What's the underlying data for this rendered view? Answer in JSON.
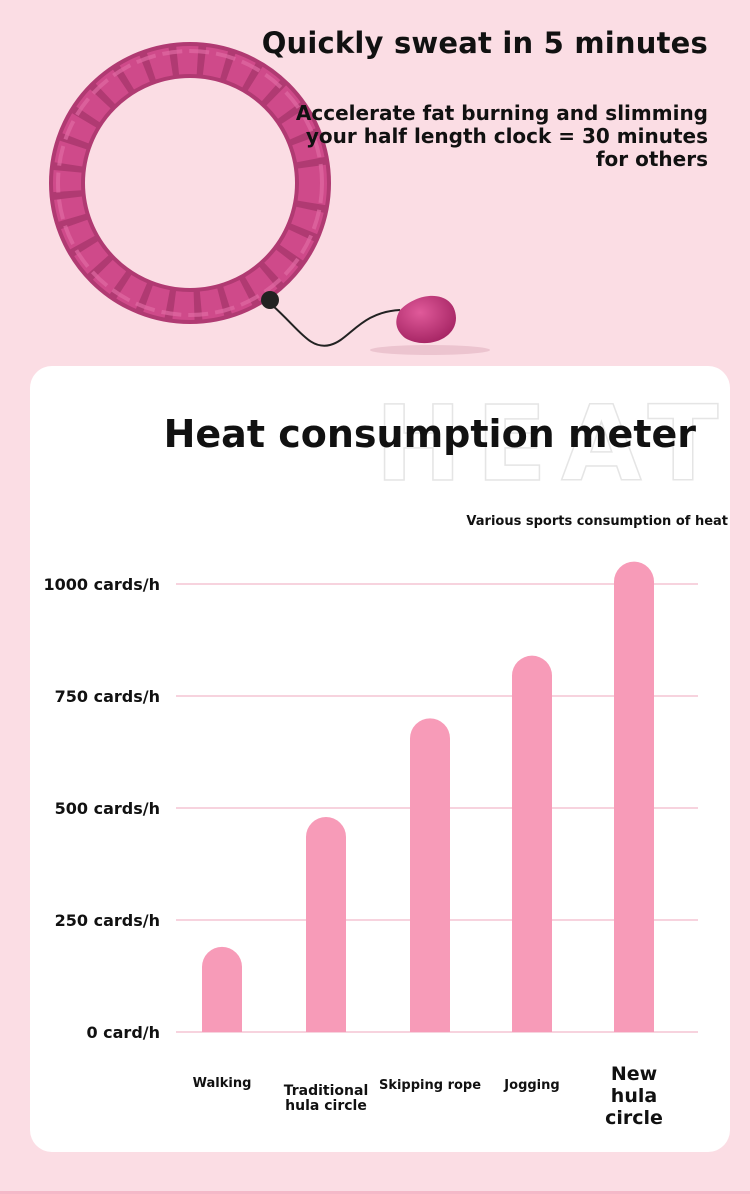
{
  "header": {
    "headline": "Quickly sweat in 5 minutes",
    "subhead": "Accelerate fat burning and slimming your half length clock = 30 minutes for others"
  },
  "watermark": "HEAT",
  "colors": {
    "background": "#fbdde4",
    "bar": "#f79bb8",
    "gridline": "#f2b9c9",
    "hoop": "#c2457f",
    "card": "#ffffff"
  },
  "chart_data": {
    "type": "bar",
    "title": "Heat consumption meter",
    "subtitle": "Various sports consumption of heat",
    "categories": [
      "Walking",
      "Traditional hula circle",
      "Skipping rope",
      "Jogging",
      "New hula circle"
    ],
    "values": [
      190,
      480,
      700,
      840,
      1050
    ],
    "ylim": [
      0,
      1000
    ],
    "yticks": [
      {
        "value": 0,
        "label": "0 card/h"
      },
      {
        "value": 250,
        "label": "250 cards/h"
      },
      {
        "value": 500,
        "label": "500 cards/h"
      },
      {
        "value": 750,
        "label": "750 cards/h"
      },
      {
        "value": 1000,
        "label": "1000 cards/h"
      }
    ],
    "grid": true
  }
}
